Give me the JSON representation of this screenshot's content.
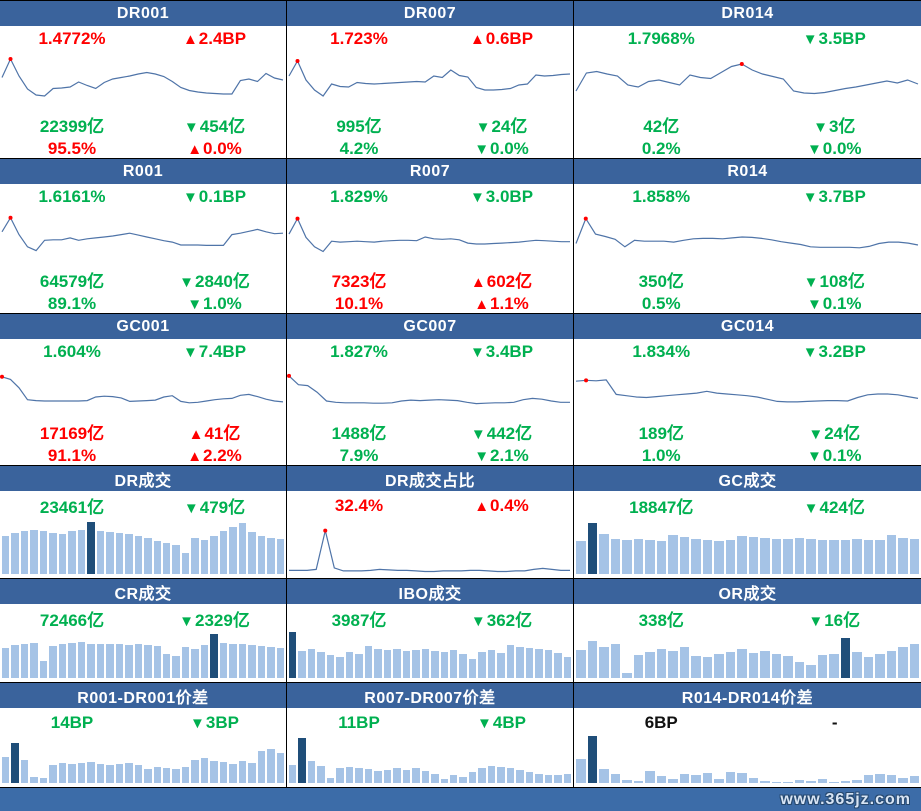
{
  "colors": {
    "header_bg": "#3a639c",
    "footer_bg": "#3c6ca8",
    "red": "#ff0000",
    "green": "#00b050",
    "line": "#4f74a8",
    "bar_light": "#a5c3e6",
    "bar_dark": "#1f4e79"
  },
  "footer": {
    "watermark": "www.365jz.com"
  },
  "rate_panels": [
    {
      "title": "DR001",
      "rate": {
        "text": "1.4772%",
        "tone": "red"
      },
      "rate_change": {
        "arrow": "▲",
        "text": "2.4BP",
        "tone": "red"
      },
      "volume": {
        "text": "22399亿",
        "tone": "green"
      },
      "volume_change": {
        "arrow": "▼",
        "text": "454亿",
        "tone": "green"
      },
      "share": {
        "text": "95.5%",
        "tone": "red"
      },
      "share_change": {
        "arrow": "▲",
        "text": "0.0%",
        "tone": "red"
      },
      "chart": {
        "type": "line",
        "dot_index": 1,
        "values": [
          55,
          92,
          58,
          32,
          20,
          18,
          33,
          34,
          36,
          46,
          39,
          33,
          45,
          52,
          55,
          58,
          62,
          65,
          62,
          57,
          47,
          35,
          29,
          26,
          24,
          23,
          22,
          22,
          49,
          52,
          47,
          63,
          54,
          50
        ]
      }
    },
    {
      "title": "DR007",
      "rate": {
        "text": "1.723%",
        "tone": "red"
      },
      "rate_change": {
        "arrow": "▲",
        "text": "0.6BP",
        "tone": "red"
      },
      "volume": {
        "text": "995亿",
        "tone": "green"
      },
      "volume_change": {
        "arrow": "▼",
        "text": "24亿",
        "tone": "green"
      },
      "share": {
        "text": "4.2%",
        "tone": "green"
      },
      "share_change": {
        "arrow": "▼",
        "text": "0.0%",
        "tone": "green"
      },
      "chart": {
        "type": "line",
        "dot_index": 1,
        "values": [
          58,
          88,
          50,
          30,
          18,
          42,
          37,
          36,
          45,
          43,
          42,
          43,
          44,
          45,
          46,
          47,
          46,
          58,
          55,
          70,
          59,
          56,
          35,
          30,
          30,
          31,
          33,
          40,
          42,
          60,
          58,
          59,
          61,
          62
        ]
      }
    },
    {
      "title": "DR014",
      "rate": {
        "text": "1.7968%",
        "tone": "green"
      },
      "rate_change": {
        "arrow": "▼",
        "text": "3.5BP",
        "tone": "green"
      },
      "volume": {
        "text": "42亿",
        "tone": "green"
      },
      "volume_change": {
        "arrow": "▼",
        "text": "3亿",
        "tone": "green"
      },
      "share": {
        "text": "0.2%",
        "tone": "green"
      },
      "share_change": {
        "arrow": "▼",
        "text": "0.0%",
        "tone": "green"
      },
      "chart": {
        "type": "line",
        "dot_index": 16,
        "values": [
          28,
          64,
          67,
          62,
          58,
          40,
          36,
          47,
          50,
          45,
          40,
          60,
          55,
          53,
          65,
          77,
          82,
          70,
          62,
          57,
          52,
          28,
          24,
          23,
          25,
          29,
          33,
          36,
          40,
          44,
          48,
          44,
          50,
          42
        ]
      }
    },
    {
      "title": "R001",
      "rate": {
        "text": "1.6161%",
        "tone": "green"
      },
      "rate_change": {
        "arrow": "▼",
        "text": "0.1BP",
        "tone": "green"
      },
      "volume": {
        "text": "64579亿",
        "tone": "green"
      },
      "volume_change": {
        "arrow": "▼",
        "text": "2840亿",
        "tone": "green"
      },
      "share": {
        "text": "89.1%",
        "tone": "green"
      },
      "share_change": {
        "arrow": "▼",
        "text": "1.0%",
        "tone": "green"
      },
      "chart": {
        "type": "line",
        "dot_index": 1,
        "values": [
          60,
          90,
          54,
          28,
          20,
          42,
          43,
          43,
          47,
          42,
          45,
          47,
          49,
          51,
          54,
          57,
          53,
          49,
          45,
          41,
          38,
          32,
          32,
          32,
          31,
          31,
          31,
          54,
          57,
          61,
          65,
          60,
          56,
          57
        ]
      }
    },
    {
      "title": "R007",
      "rate": {
        "text": "1.829%",
        "tone": "green"
      },
      "rate_change": {
        "arrow": "▼",
        "text": "3.0BP",
        "tone": "green"
      },
      "volume": {
        "text": "7323亿",
        "tone": "red"
      },
      "volume_change": {
        "arrow": "▲",
        "text": "602亿",
        "tone": "red"
      },
      "share": {
        "text": "10.1%",
        "tone": "red"
      },
      "share_change": {
        "arrow": "▲",
        "text": "1.1%",
        "tone": "red"
      },
      "chart": {
        "type": "line",
        "dot_index": 1,
        "values": [
          55,
          88,
          48,
          28,
          18,
          40,
          38,
          39,
          40,
          39,
          38,
          40,
          41,
          42,
          42,
          41,
          49,
          45,
          44,
          45,
          43,
          36,
          34,
          34,
          35,
          36,
          37,
          38,
          40,
          42,
          41,
          40,
          39,
          39
        ]
      }
    },
    {
      "title": "R014",
      "rate": {
        "text": "1.858%",
        "tone": "green"
      },
      "rate_change": {
        "arrow": "▼",
        "text": "3.7BP",
        "tone": "green"
      },
      "volume": {
        "text": "350亿",
        "tone": "green"
      },
      "volume_change": {
        "arrow": "▼",
        "text": "108亿",
        "tone": "green"
      },
      "share": {
        "text": "0.5%",
        "tone": "green"
      },
      "share_change": {
        "arrow": "▼",
        "text": "0.1%",
        "tone": "green"
      },
      "chart": {
        "type": "line",
        "dot_index": 1,
        "values": [
          35,
          88,
          55,
          50,
          44,
          28,
          42,
          40,
          40,
          40,
          38,
          42,
          45,
          46,
          46,
          45,
          47,
          49,
          48,
          46,
          43,
          39,
          36,
          33,
          28,
          27,
          27,
          27,
          27,
          26,
          29,
          35,
          38,
          38,
          36,
          32
        ]
      }
    },
    {
      "title": "GC001",
      "rate": {
        "text": "1.604%",
        "tone": "green"
      },
      "rate_change": {
        "arrow": "▼",
        "text": "7.4BP",
        "tone": "green"
      },
      "volume": {
        "text": "17169亿",
        "tone": "red"
      },
      "volume_change": {
        "arrow": "▲",
        "text": "41亿",
        "tone": "red"
      },
      "share": {
        "text": "91.1%",
        "tone": "red"
      },
      "share_change": {
        "arrow": "▲",
        "text": "2.2%",
        "tone": "red"
      },
      "chart": {
        "type": "line",
        "dot_index": 0,
        "values": [
          80,
          74,
          55,
          28,
          26,
          25,
          25,
          25,
          25,
          25,
          26,
          34,
          36,
          35,
          32,
          24,
          25,
          26,
          27,
          34,
          37,
          24,
          21,
          22,
          25,
          28,
          30,
          31,
          38,
          40,
          35,
          29,
          25,
          23
        ]
      }
    },
    {
      "title": "GC007",
      "rate": {
        "text": "1.827%",
        "tone": "green"
      },
      "rate_change": {
        "arrow": "▼",
        "text": "3.4BP",
        "tone": "green"
      },
      "volume": {
        "text": "1488亿",
        "tone": "green"
      },
      "volume_change": {
        "arrow": "▼",
        "text": "442亿",
        "tone": "green"
      },
      "share": {
        "text": "7.9%",
        "tone": "green"
      },
      "share_change": {
        "arrow": "▼",
        "text": "2.1%",
        "tone": "green"
      },
      "chart": {
        "type": "line",
        "dot_index": 0,
        "values": [
          82,
          62,
          60,
          45,
          25,
          22,
          21,
          21,
          21,
          20,
          20,
          21,
          25,
          27,
          26,
          27,
          28,
          27,
          26,
          22,
          19,
          20,
          21,
          21,
          22,
          28,
          31,
          29,
          25,
          22,
          22
        ]
      }
    },
    {
      "title": "GC014",
      "rate": {
        "text": "1.834%",
        "tone": "green"
      },
      "rate_change": {
        "arrow": "▼",
        "text": "3.2BP",
        "tone": "green"
      },
      "volume": {
        "text": "189亿",
        "tone": "green"
      },
      "volume_change": {
        "arrow": "▼",
        "text": "24亿",
        "tone": "green"
      },
      "share": {
        "text": "1.0%",
        "tone": "green"
      },
      "share_change": {
        "arrow": "▼",
        "text": "0.1%",
        "tone": "green"
      },
      "chart": {
        "type": "line",
        "dot_index": 1,
        "values": [
          70,
          72,
          71,
          73,
          40,
          37,
          34,
          33,
          35,
          37,
          39,
          41,
          43,
          47,
          43,
          41,
          39,
          37,
          34,
          29,
          24,
          23,
          23,
          24,
          25,
          26,
          26,
          25,
          33,
          39,
          41,
          41,
          39,
          35,
          31
        ]
      }
    }
  ],
  "volume_panels": [
    {
      "title": "DR成交",
      "value": {
        "text": "23461亿",
        "tone": "green"
      },
      "change": {
        "arrow": "▼",
        "text": "479亿",
        "tone": "green"
      },
      "chart": {
        "type": "bar",
        "highlight_index": 9,
        "values": [
          70,
          74,
          78,
          80,
          78,
          74,
          72,
          78,
          80,
          95,
          78,
          76,
          74,
          73,
          70,
          66,
          60,
          56,
          52,
          38,
          66,
          62,
          70,
          78,
          86,
          92,
          76,
          70,
          66,
          64
        ]
      }
    },
    {
      "title": "DR成交占比",
      "value": {
        "text": "32.4%",
        "tone": "red"
      },
      "change": {
        "arrow": "▲",
        "text": "0.4%",
        "tone": "red"
      },
      "chart": {
        "type": "line",
        "dot_index": 4,
        "values": [
          7,
          7,
          7,
          9,
          85,
          12,
          6,
          6,
          6,
          7,
          9,
          8,
          7,
          7,
          6,
          5,
          5,
          6,
          6,
          6,
          7,
          7,
          6,
          5,
          5,
          6,
          6,
          9,
          11,
          9,
          7,
          7
        ]
      }
    },
    {
      "title": "GC成交",
      "value": {
        "text": "18847亿",
        "tone": "green"
      },
      "change": {
        "arrow": "▼",
        "text": "424亿",
        "tone": "green"
      },
      "chart": {
        "type": "bar",
        "highlight_index": 1,
        "values": [
          60,
          92,
          72,
          64,
          62,
          63,
          61,
          60,
          71,
          67,
          64,
          61,
          60,
          62,
          69,
          67,
          65,
          64,
          63,
          65,
          63,
          61,
          62,
          61,
          63,
          61,
          62,
          71,
          65,
          63
        ]
      }
    },
    {
      "title": "CR成交",
      "value": {
        "text": "72466亿",
        "tone": "green"
      },
      "change": {
        "arrow": "▼",
        "text": "2329亿",
        "tone": "green"
      },
      "chart": {
        "type": "bar",
        "highlight_index": 22,
        "values": [
          66,
          71,
          75,
          77,
          36,
          69,
          73,
          77,
          79,
          75,
          73,
          75,
          73,
          71,
          73,
          71,
          69,
          53,
          47,
          67,
          63,
          71,
          95,
          77,
          73,
          75,
          71,
          69,
          67,
          65
        ]
      }
    },
    {
      "title": "IBO成交",
      "value": {
        "text": "3987亿",
        "tone": "green"
      },
      "change": {
        "arrow": "▼",
        "text": "362亿",
        "tone": "green"
      },
      "chart": {
        "type": "bar",
        "highlight_index": 0,
        "values": [
          100,
          58,
          62,
          56,
          50,
          46,
          56,
          52,
          70,
          64,
          60,
          62,
          58,
          60,
          62,
          58,
          56,
          60,
          52,
          42,
          56,
          60,
          54,
          72,
          68,
          66,
          64,
          60,
          54,
          46
        ]
      }
    },
    {
      "title": "OR成交",
      "value": {
        "text": "338亿",
        "tone": "green"
      },
      "change": {
        "arrow": "▼",
        "text": "16亿",
        "tone": "green"
      },
      "chart": {
        "type": "bar",
        "highlight_index": 23,
        "values": [
          60,
          80,
          68,
          74,
          10,
          50,
          56,
          64,
          58,
          68,
          48,
          46,
          52,
          56,
          64,
          54,
          58,
          52,
          48,
          34,
          28,
          50,
          52,
          88,
          56,
          46,
          52,
          58,
          68,
          74
        ]
      }
    },
    {
      "title": "R001-DR001价差",
      "value": {
        "text": "14BP",
        "tone": "green"
      },
      "change": {
        "arrow": "▼",
        "text": "3BP",
        "tone": "green"
      },
      "chart": {
        "type": "bar",
        "highlight_index": 1,
        "values": [
          56,
          86,
          48,
          12,
          10,
          38,
          42,
          40,
          42,
          44,
          40,
          38,
          40,
          42,
          38,
          30,
          34,
          32,
          30,
          34,
          48,
          54,
          46,
          44,
          40,
          46,
          42,
          68,
          72,
          64
        ]
      }
    },
    {
      "title": "R007-DR007价差",
      "value": {
        "text": "11BP",
        "tone": "green"
      },
      "change": {
        "arrow": "▼",
        "text": "4BP",
        "tone": "green"
      },
      "chart": {
        "type": "bar",
        "highlight_index": 1,
        "values": [
          38,
          95,
          46,
          36,
          10,
          32,
          34,
          32,
          30,
          26,
          28,
          32,
          28,
          32,
          26,
          20,
          8,
          16,
          12,
          24,
          32,
          36,
          34,
          32,
          28,
          24,
          20,
          16,
          18,
          20
        ]
      }
    },
    {
      "title": "R014-DR014价差",
      "value": {
        "text": "6BP",
        "tone": "black"
      },
      "change": {
        "arrow": "",
        "text": "-",
        "tone": "black"
      },
      "chart": {
        "type": "bar",
        "highlight_index": 1,
        "values": [
          52,
          100,
          30,
          20,
          6,
          4,
          26,
          14,
          8,
          20,
          18,
          22,
          8,
          24,
          22,
          10,
          4,
          2,
          3,
          6,
          4,
          8,
          3,
          5,
          6,
          18,
          20,
          16,
          10,
          14
        ]
      }
    }
  ]
}
